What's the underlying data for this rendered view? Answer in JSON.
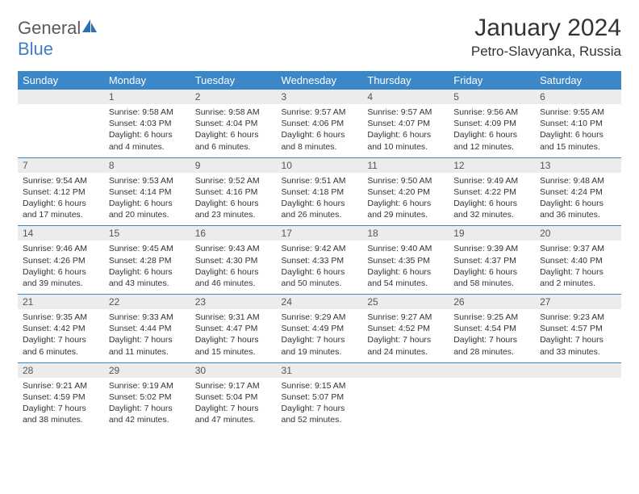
{
  "brand": {
    "part1": "General",
    "part2": "Blue"
  },
  "title": "January 2024",
  "location": "Petro-Slavyanka, Russia",
  "colors": {
    "header_bg": "#3b87c8",
    "header_text": "#ffffff",
    "daynum_bg": "#ececec",
    "rule": "#3b87c8",
    "brand_blue": "#3b7fc4",
    "brand_gray": "#5a5a5a"
  },
  "weekdays": [
    "Sunday",
    "Monday",
    "Tuesday",
    "Wednesday",
    "Thursday",
    "Friday",
    "Saturday"
  ],
  "weeks": [
    {
      "nums": [
        "",
        "1",
        "2",
        "3",
        "4",
        "5",
        "6"
      ],
      "cells": [
        {
          "sunrise": "",
          "sunset": "",
          "daylight": ""
        },
        {
          "sunrise": "Sunrise: 9:58 AM",
          "sunset": "Sunset: 4:03 PM",
          "daylight": "Daylight: 6 hours and 4 minutes."
        },
        {
          "sunrise": "Sunrise: 9:58 AM",
          "sunset": "Sunset: 4:04 PM",
          "daylight": "Daylight: 6 hours and 6 minutes."
        },
        {
          "sunrise": "Sunrise: 9:57 AM",
          "sunset": "Sunset: 4:06 PM",
          "daylight": "Daylight: 6 hours and 8 minutes."
        },
        {
          "sunrise": "Sunrise: 9:57 AM",
          "sunset": "Sunset: 4:07 PM",
          "daylight": "Daylight: 6 hours and 10 minutes."
        },
        {
          "sunrise": "Sunrise: 9:56 AM",
          "sunset": "Sunset: 4:09 PM",
          "daylight": "Daylight: 6 hours and 12 minutes."
        },
        {
          "sunrise": "Sunrise: 9:55 AM",
          "sunset": "Sunset: 4:10 PM",
          "daylight": "Daylight: 6 hours and 15 minutes."
        }
      ]
    },
    {
      "nums": [
        "7",
        "8",
        "9",
        "10",
        "11",
        "12",
        "13"
      ],
      "cells": [
        {
          "sunrise": "Sunrise: 9:54 AM",
          "sunset": "Sunset: 4:12 PM",
          "daylight": "Daylight: 6 hours and 17 minutes."
        },
        {
          "sunrise": "Sunrise: 9:53 AM",
          "sunset": "Sunset: 4:14 PM",
          "daylight": "Daylight: 6 hours and 20 minutes."
        },
        {
          "sunrise": "Sunrise: 9:52 AM",
          "sunset": "Sunset: 4:16 PM",
          "daylight": "Daylight: 6 hours and 23 minutes."
        },
        {
          "sunrise": "Sunrise: 9:51 AM",
          "sunset": "Sunset: 4:18 PM",
          "daylight": "Daylight: 6 hours and 26 minutes."
        },
        {
          "sunrise": "Sunrise: 9:50 AM",
          "sunset": "Sunset: 4:20 PM",
          "daylight": "Daylight: 6 hours and 29 minutes."
        },
        {
          "sunrise": "Sunrise: 9:49 AM",
          "sunset": "Sunset: 4:22 PM",
          "daylight": "Daylight: 6 hours and 32 minutes."
        },
        {
          "sunrise": "Sunrise: 9:48 AM",
          "sunset": "Sunset: 4:24 PM",
          "daylight": "Daylight: 6 hours and 36 minutes."
        }
      ]
    },
    {
      "nums": [
        "14",
        "15",
        "16",
        "17",
        "18",
        "19",
        "20"
      ],
      "cells": [
        {
          "sunrise": "Sunrise: 9:46 AM",
          "sunset": "Sunset: 4:26 PM",
          "daylight": "Daylight: 6 hours and 39 minutes."
        },
        {
          "sunrise": "Sunrise: 9:45 AM",
          "sunset": "Sunset: 4:28 PM",
          "daylight": "Daylight: 6 hours and 43 minutes."
        },
        {
          "sunrise": "Sunrise: 9:43 AM",
          "sunset": "Sunset: 4:30 PM",
          "daylight": "Daylight: 6 hours and 46 minutes."
        },
        {
          "sunrise": "Sunrise: 9:42 AM",
          "sunset": "Sunset: 4:33 PM",
          "daylight": "Daylight: 6 hours and 50 minutes."
        },
        {
          "sunrise": "Sunrise: 9:40 AM",
          "sunset": "Sunset: 4:35 PM",
          "daylight": "Daylight: 6 hours and 54 minutes."
        },
        {
          "sunrise": "Sunrise: 9:39 AM",
          "sunset": "Sunset: 4:37 PM",
          "daylight": "Daylight: 6 hours and 58 minutes."
        },
        {
          "sunrise": "Sunrise: 9:37 AM",
          "sunset": "Sunset: 4:40 PM",
          "daylight": "Daylight: 7 hours and 2 minutes."
        }
      ]
    },
    {
      "nums": [
        "21",
        "22",
        "23",
        "24",
        "25",
        "26",
        "27"
      ],
      "cells": [
        {
          "sunrise": "Sunrise: 9:35 AM",
          "sunset": "Sunset: 4:42 PM",
          "daylight": "Daylight: 7 hours and 6 minutes."
        },
        {
          "sunrise": "Sunrise: 9:33 AM",
          "sunset": "Sunset: 4:44 PM",
          "daylight": "Daylight: 7 hours and 11 minutes."
        },
        {
          "sunrise": "Sunrise: 9:31 AM",
          "sunset": "Sunset: 4:47 PM",
          "daylight": "Daylight: 7 hours and 15 minutes."
        },
        {
          "sunrise": "Sunrise: 9:29 AM",
          "sunset": "Sunset: 4:49 PM",
          "daylight": "Daylight: 7 hours and 19 minutes."
        },
        {
          "sunrise": "Sunrise: 9:27 AM",
          "sunset": "Sunset: 4:52 PM",
          "daylight": "Daylight: 7 hours and 24 minutes."
        },
        {
          "sunrise": "Sunrise: 9:25 AM",
          "sunset": "Sunset: 4:54 PM",
          "daylight": "Daylight: 7 hours and 28 minutes."
        },
        {
          "sunrise": "Sunrise: 9:23 AM",
          "sunset": "Sunset: 4:57 PM",
          "daylight": "Daylight: 7 hours and 33 minutes."
        }
      ]
    },
    {
      "nums": [
        "28",
        "29",
        "30",
        "31",
        "",
        "",
        ""
      ],
      "cells": [
        {
          "sunrise": "Sunrise: 9:21 AM",
          "sunset": "Sunset: 4:59 PM",
          "daylight": "Daylight: 7 hours and 38 minutes."
        },
        {
          "sunrise": "Sunrise: 9:19 AM",
          "sunset": "Sunset: 5:02 PM",
          "daylight": "Daylight: 7 hours and 42 minutes."
        },
        {
          "sunrise": "Sunrise: 9:17 AM",
          "sunset": "Sunset: 5:04 PM",
          "daylight": "Daylight: 7 hours and 47 minutes."
        },
        {
          "sunrise": "Sunrise: 9:15 AM",
          "sunset": "Sunset: 5:07 PM",
          "daylight": "Daylight: 7 hours and 52 minutes."
        },
        {
          "sunrise": "",
          "sunset": "",
          "daylight": ""
        },
        {
          "sunrise": "",
          "sunset": "",
          "daylight": ""
        },
        {
          "sunrise": "",
          "sunset": "",
          "daylight": ""
        }
      ]
    }
  ]
}
